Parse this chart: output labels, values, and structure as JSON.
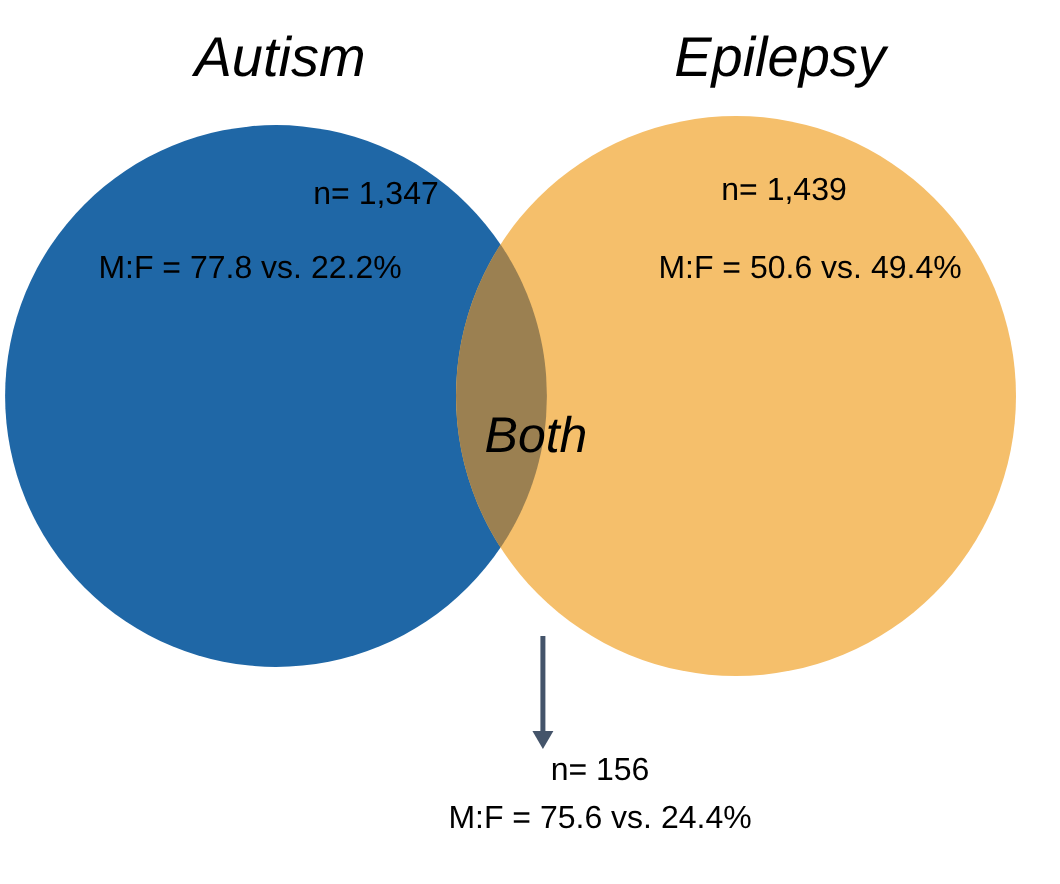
{
  "chart_data": {
    "type": "other",
    "categories": [
      "Autism",
      "Epilepsy",
      "Both"
    ],
    "values": [
      1347,
      1439,
      156
    ],
    "value_labels": [
      "n= 1,347",
      "n= 1,439",
      "n= 156"
    ],
    "annotations": [
      "M:F = 77.8 vs. 22.2%",
      "M:F = 50.6 vs. 49.4%",
      "M:F = 75.6 vs. 24.4%"
    ],
    "colors": [
      "#1f67a6",
      "#f5bf6b",
      "#9b8051"
    ]
  }
}
